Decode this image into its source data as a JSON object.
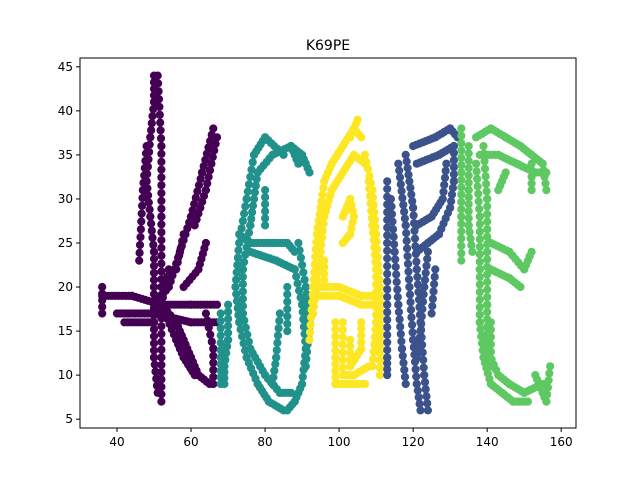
{
  "chart_data": {
    "type": "scatter",
    "title": "K69PE",
    "xlabel": "",
    "ylabel": "",
    "xlim": [
      30,
      164
    ],
    "ylim": [
      4,
      46
    ],
    "xticks": [
      40,
      60,
      80,
      100,
      120,
      140,
      160
    ],
    "yticks": [
      5,
      10,
      15,
      20,
      25,
      30,
      35,
      40,
      45
    ],
    "grid": false,
    "legend": "none",
    "marker_radius_data_x": 1.1,
    "series": [
      {
        "color": "#440154",
        "strokes": [
          [
            [
              50,
              44
            ],
            [
              50,
              41
            ],
            [
              49,
              37
            ],
            [
              48,
              32
            ],
            [
              49,
              28
            ],
            [
              50,
              24
            ],
            [
              50,
              20
            ],
            [
              50,
              16
            ],
            [
              50,
              12
            ],
            [
              51,
              8
            ]
          ],
          [
            [
              51,
              44
            ],
            [
              52,
              36
            ],
            [
              52,
              28
            ],
            [
              52,
              20
            ],
            [
              52,
              12
            ],
            [
              52,
              7
            ]
          ],
          [
            [
              36,
              20
            ],
            [
              36,
              17
            ]
          ],
          [
            [
              36,
              19
            ],
            [
              44,
              19
            ],
            [
              52,
              18
            ],
            [
              60,
              18
            ],
            [
              67,
              18
            ]
          ],
          [
            [
              40,
              17
            ],
            [
              50,
              17
            ],
            [
              60,
              16
            ],
            [
              67,
              16
            ]
          ],
          [
            [
              42,
              16
            ],
            [
              49,
              16
            ]
          ],
          [
            [
              66,
              38
            ],
            [
              63,
              33
            ],
            [
              60,
              28
            ],
            [
              57,
              24
            ],
            [
              54,
              20
            ],
            [
              50,
              18
            ]
          ],
          [
            [
              67,
              37
            ],
            [
              64,
              31
            ],
            [
              61,
              27
            ]
          ],
          [
            [
              54,
              22
            ],
            [
              52,
              18
            ],
            [
              56,
              16
            ],
            [
              58,
              14
            ],
            [
              60,
              12
            ],
            [
              62,
              10
            ],
            [
              65,
              9
            ]
          ],
          [
            [
              53,
              17
            ],
            [
              56,
              14
            ],
            [
              58,
              12
            ],
            [
              61,
              10
            ]
          ],
          [
            [
              64,
              17
            ],
            [
              66,
              13
            ],
            [
              66,
              9
            ]
          ],
          [
            [
              58,
              20
            ],
            [
              62,
              22
            ],
            [
              64,
              25
            ]
          ],
          [
            [
              46,
              23
            ],
            [
              47,
              31
            ],
            [
              48,
              36
            ]
          ],
          [
            [
              56,
              22
            ],
            [
              58,
              26
            ]
          ]
        ]
      },
      {
        "color": "#21918c",
        "strokes": [
          [
            [
              85,
              35
            ],
            [
              80,
              37
            ],
            [
              77,
              35
            ],
            [
              75,
              30
            ],
            [
              73,
              25
            ],
            [
              72,
              20
            ],
            [
              73,
              16
            ],
            [
              75,
              12
            ],
            [
              78,
              9
            ],
            [
              81,
              7
            ],
            [
              85,
              6
            ]
          ],
          [
            [
              87,
              36
            ],
            [
              82,
              35
            ],
            [
              78,
              33
            ],
            [
              76,
              27
            ],
            [
              74,
              22
            ],
            [
              74,
              17
            ],
            [
              76,
              13
            ],
            [
              80,
              10
            ],
            [
              84,
              8
            ],
            [
              87,
              8
            ]
          ],
          [
            [
              89,
              34
            ],
            [
              87,
              36
            ],
            [
              90,
              35
            ],
            [
              92,
              33
            ]
          ],
          [
            [
              73,
              26
            ],
            [
              76,
              25
            ],
            [
              82,
              25
            ],
            [
              86,
              25
            ],
            [
              88,
              24
            ]
          ],
          [
            [
              76,
              24
            ],
            [
              83,
              23
            ],
            [
              88,
              22
            ],
            [
              90,
              18
            ],
            [
              91,
              13
            ],
            [
              90,
              9
            ],
            [
              88,
              7
            ],
            [
              86,
              6
            ]
          ],
          [
            [
              89,
              25
            ],
            [
              91,
              20
            ],
            [
              92,
              16
            ],
            [
              91,
              11
            ]
          ],
          [
            [
              70,
              18
            ],
            [
              70,
              14
            ],
            [
              69,
              11
            ],
            [
              69,
              9
            ]
          ],
          [
            [
              68,
              17
            ],
            [
              68,
              12
            ],
            [
              68,
              9
            ]
          ],
          [
            [
              80,
              31
            ],
            [
              80,
              27
            ]
          ],
          [
            [
              84,
              17
            ],
            [
              83,
              12
            ],
            [
              82,
              9
            ]
          ],
          [
            [
              86,
              20
            ],
            [
              86,
              15
            ]
          ]
        ]
      },
      {
        "color": "#fde725",
        "strokes": [
          [
            [
              92,
              14
            ],
            [
              93,
              20
            ],
            [
              94,
              26
            ],
            [
              96,
              32
            ],
            [
              98,
              34
            ],
            [
              101,
              36
            ],
            [
              104,
              38
            ],
            [
              106,
              37
            ]
          ],
          [
            [
              93,
              17
            ],
            [
              95,
              24
            ],
            [
              96,
              28
            ],
            [
              98,
              31
            ],
            [
              101,
              33
            ],
            [
              104,
              35
            ],
            [
              107,
              34
            ]
          ],
          [
            [
              94,
              20
            ],
            [
              100,
              20
            ],
            [
              106,
              19
            ],
            [
              110,
              19
            ]
          ],
          [
            [
              94,
              19
            ],
            [
              100,
              19
            ],
            [
              106,
              18
            ],
            [
              109,
              18
            ]
          ],
          [
            [
              107,
              35
            ],
            [
              109,
              31
            ],
            [
              110,
              26
            ],
            [
              111,
              20
            ],
            [
              111,
              15
            ],
            [
              111,
              10
            ]
          ],
          [
            [
              108,
              32
            ],
            [
              109,
              27
            ],
            [
              110,
              22
            ],
            [
              110,
              16
            ],
            [
              109,
              11
            ]
          ],
          [
            [
              99,
              16
            ],
            [
              99,
              12
            ],
            [
              99,
              9
            ],
            [
              103,
              9
            ],
            [
              107,
              9
            ]
          ],
          [
            [
              101,
              16
            ],
            [
              101,
              10
            ],
            [
              104,
              10
            ],
            [
              108,
              11
            ]
          ],
          [
            [
              101,
              28
            ],
            [
              103,
              30
            ],
            [
              104,
              28
            ],
            [
              103,
              26
            ],
            [
              101,
              25
            ]
          ],
          [
            [
              105,
              39
            ],
            [
              103,
              37
            ]
          ],
          [
            [
              96,
              23
            ],
            [
              96,
              20
            ]
          ],
          [
            [
              103,
              14
            ],
            [
              103,
              11
            ],
            [
              106,
              13
            ],
            [
              106,
              16
            ]
          ]
        ]
      },
      {
        "color": "#3b528b",
        "strokes": [
          [
            [
              113,
              32
            ],
            [
              113,
              25
            ],
            [
              113,
              18
            ],
            [
              113,
              12
            ],
            [
              113,
              10
            ]
          ],
          [
            [
              114,
              30
            ],
            [
              115,
              24
            ],
            [
              116,
              18
            ],
            [
              117,
              13
            ],
            [
              118,
              9
            ]
          ],
          [
            [
              116,
              34
            ],
            [
              118,
              27
            ],
            [
              119,
              20
            ],
            [
              120,
              14
            ],
            [
              121,
              9
            ],
            [
              122,
              6
            ]
          ],
          [
            [
              118,
              35
            ],
            [
              120,
              29
            ],
            [
              121,
              22
            ],
            [
              122,
              16
            ],
            [
              123,
              10
            ],
            [
              124,
              6
            ]
          ],
          [
            [
              120,
              36
            ],
            [
              126,
              37
            ],
            [
              130,
              38
            ],
            [
              132,
              37
            ]
          ],
          [
            [
              121,
              34
            ],
            [
              127,
              35
            ],
            [
              131,
              36
            ]
          ],
          [
            [
              131,
              36
            ],
            [
              131,
              32
            ],
            [
              130,
              29
            ],
            [
              127,
              26
            ],
            [
              124,
              25
            ],
            [
              121,
              24
            ]
          ],
          [
            [
              129,
              34
            ],
            [
              128,
              30
            ],
            [
              125,
              28
            ],
            [
              121,
              27
            ]
          ],
          [
            [
              124,
              24
            ],
            [
              123,
              20
            ],
            [
              122,
              15
            ],
            [
              121,
              12
            ]
          ],
          [
            [
              126,
              22
            ],
            [
              125,
              17
            ]
          ]
        ]
      },
      {
        "color": "#5ec962",
        "strokes": [
          [
            [
              133,
              38
            ],
            [
              133,
              33
            ],
            [
              133,
              28
            ],
            [
              133,
              23
            ]
          ],
          [
            [
              135,
              36
            ],
            [
              135,
              31
            ],
            [
              135,
              27
            ],
            [
              136,
              24
            ]
          ],
          [
            [
              137,
              34
            ],
            [
              138,
              28
            ],
            [
              138,
              22
            ],
            [
              138,
              16
            ],
            [
              139,
              12
            ],
            [
              141,
              9
            ],
            [
              144,
              8
            ],
            [
              147,
              7
            ],
            [
              151,
              7
            ]
          ],
          [
            [
              139,
              36
            ],
            [
              140,
              30
            ],
            [
              140,
              24
            ],
            [
              140,
              18
            ],
            [
              140,
              13
            ],
            [
              143,
              10
            ],
            [
              146,
              9
            ],
            [
              150,
              8
            ],
            [
              155,
              9
            ]
          ],
          [
            [
              137,
              37
            ],
            [
              141,
              38
            ],
            [
              145,
              37
            ],
            [
              149,
              36
            ],
            [
              152,
              35
            ],
            [
              155,
              34
            ],
            [
              156,
              31
            ]
          ],
          [
            [
              138,
              35
            ],
            [
              143,
              35
            ],
            [
              148,
              34
            ],
            [
              153,
              33
            ],
            [
              156,
              33
            ]
          ],
          [
            [
              141,
              25
            ],
            [
              146,
              24
            ],
            [
              150,
              22
            ],
            [
              152,
              24
            ]
          ],
          [
            [
              141,
              22
            ],
            [
              146,
              21
            ],
            [
              149,
              20
            ]
          ],
          [
            [
              153,
              10
            ],
            [
              155,
              8
            ],
            [
              156,
              7
            ],
            [
              157,
              11
            ]
          ],
          [
            [
              152,
              34
            ],
            [
              152,
              31
            ]
          ],
          [
            [
              143,
              31
            ],
            [
              145,
              33
            ]
          ],
          [
            [
              141,
              16
            ],
            [
              141,
              11
            ]
          ]
        ]
      }
    ]
  }
}
